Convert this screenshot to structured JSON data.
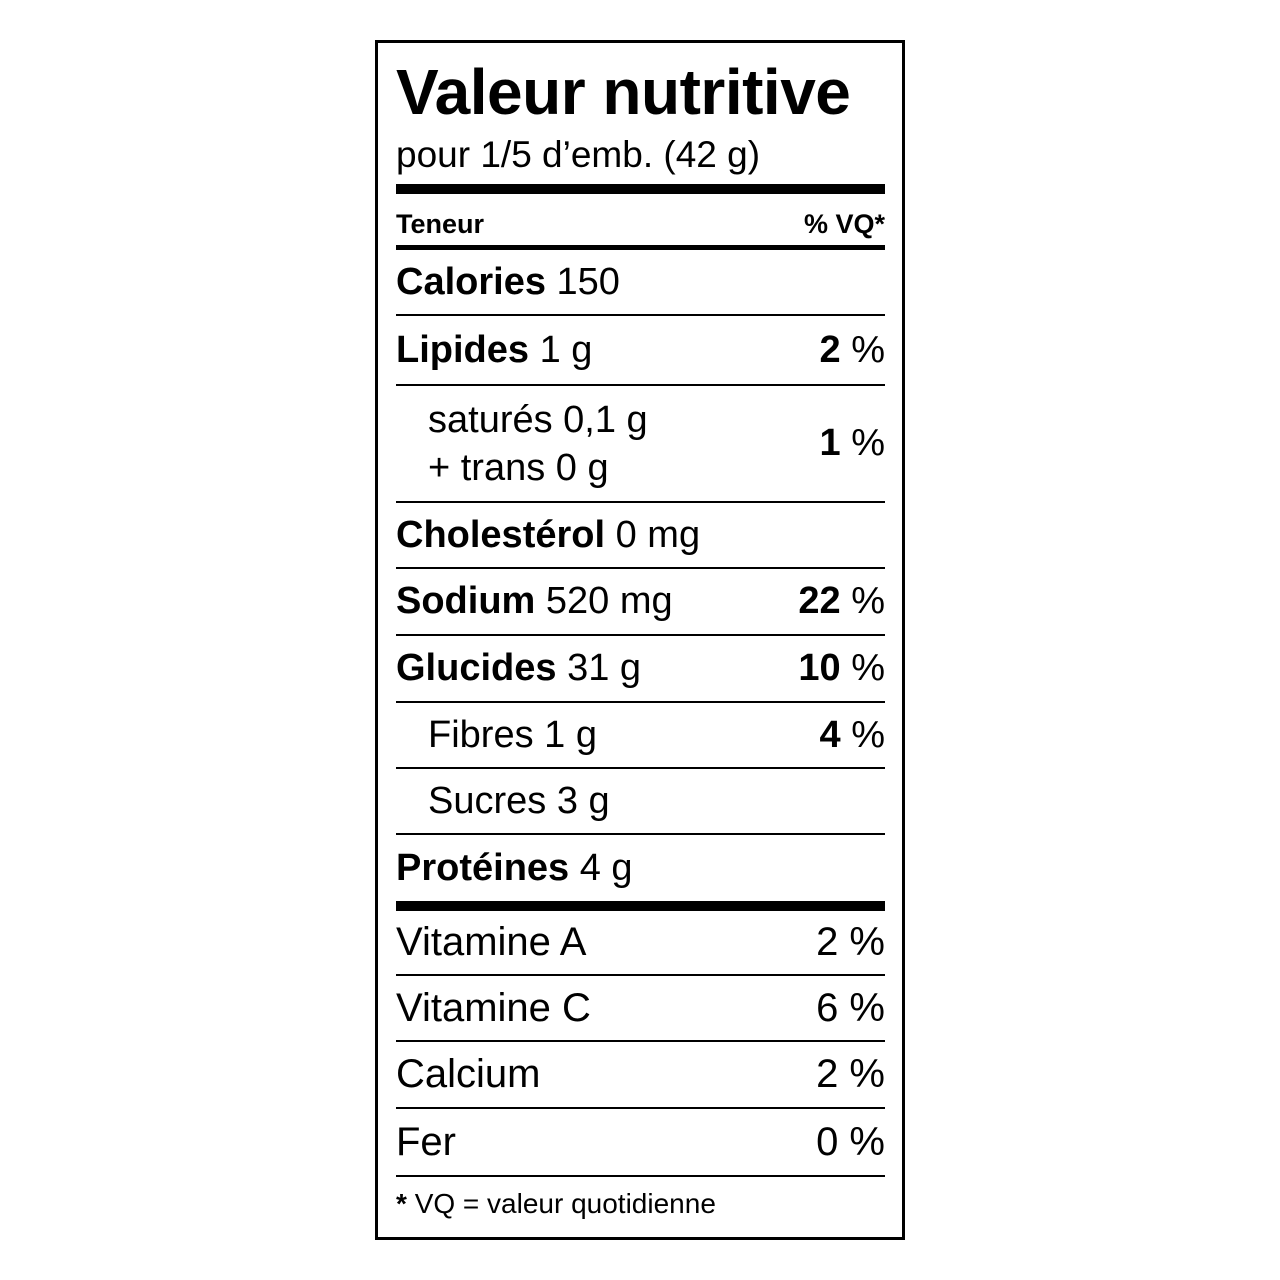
{
  "title": "Valeur nutritive",
  "serving": "pour 1/5 d’emb. (42 g)",
  "header": {
    "left": "Teneur",
    "right": "% VQ*"
  },
  "calories": {
    "label": "Calories",
    "value": "150"
  },
  "nutrients": [
    {
      "label": "Lipides",
      "amount": "1 g",
      "dv": "2",
      "unit": "%"
    },
    {
      "label": "saturés 0,1 g",
      "label2": "+ trans 0 g",
      "dv": "1",
      "unit": "%"
    },
    {
      "label": "Cholestérol",
      "amount": "0 mg"
    },
    {
      "label": "Sodium",
      "amount": "520 mg",
      "dv": "22",
      "unit": "%"
    },
    {
      "label": "Glucides",
      "amount": "31 g",
      "dv": "10",
      "unit": "%"
    },
    {
      "label": "Fibres 1 g",
      "dv": "4",
      "unit": "%"
    },
    {
      "label": "Sucres 3 g"
    },
    {
      "label": "Protéines",
      "amount": "4 g"
    }
  ],
  "vitamins": [
    {
      "label": "Vitamine A",
      "dv": "2 %"
    },
    {
      "label": "Vitamine C",
      "dv": "6 %"
    },
    {
      "label": "Calcium",
      "dv": "2 %"
    },
    {
      "label": "Fer",
      "dv": "0 %"
    }
  ],
  "footnote": {
    "star": "*",
    "text": "VQ = valeur quotidienne"
  }
}
